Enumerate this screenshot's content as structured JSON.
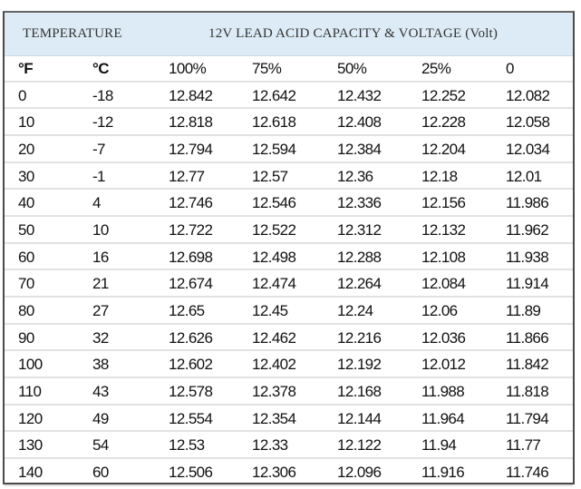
{
  "header": {
    "temperature_label": "TEMPERATURE",
    "capacity_label": "12V LEAD ACID CAPACITY & VOLTAGE (Volt)"
  },
  "chart_data": {
    "type": "table",
    "columns": [
      "°F",
      "°C",
      "100%",
      "75%",
      "50%",
      "25%",
      "0"
    ],
    "rows": [
      [
        "0",
        "-18",
        "12.842",
        "12.642",
        "12.432",
        "12.252",
        "12.082"
      ],
      [
        "10",
        "-12",
        "12.818",
        "12.618",
        "12.408",
        "12.228",
        "12.058"
      ],
      [
        "20",
        "-7",
        "12.794",
        "12.594",
        "12.384",
        "12.204",
        "12.034"
      ],
      [
        "30",
        "-1",
        "12.77",
        "12.57",
        "12.36",
        "12.18",
        "12.01"
      ],
      [
        "40",
        "4",
        "12.746",
        "12.546",
        "12.336",
        "12.156",
        "11.986"
      ],
      [
        "50",
        "10",
        "12.722",
        "12.522",
        "12.312",
        "12.132",
        "11.962"
      ],
      [
        "60",
        "16",
        "12.698",
        "12.498",
        "12.288",
        "12.108",
        "11.938"
      ],
      [
        "70",
        "21",
        "12.674",
        "12.474",
        "12.264",
        "12.084",
        "11.914"
      ],
      [
        "80",
        "27",
        "12.65",
        "12.45",
        "12.24",
        "12.06",
        "11.89"
      ],
      [
        "90",
        "32",
        "12.626",
        "12.462",
        "12.216",
        "12.036",
        "11.866"
      ],
      [
        "100",
        "38",
        "12.602",
        "12.402",
        "12.192",
        "12.012",
        "11.842"
      ],
      [
        "110",
        "43",
        "12.578",
        "12.378",
        "12.168",
        "11.988",
        "11.818"
      ],
      [
        "120",
        "49",
        "12.554",
        "12.354",
        "12.144",
        "11.964",
        "11.794"
      ],
      [
        "130",
        "54",
        "12.53",
        "12.33",
        "12.122",
        "11.94",
        "11.77"
      ],
      [
        "140",
        "60",
        "12.506",
        "12.306",
        "12.096",
        "11.916",
        "11.746"
      ]
    ]
  },
  "colors": {
    "header_band": "#dcebf5",
    "border": "#4a4a4a"
  }
}
